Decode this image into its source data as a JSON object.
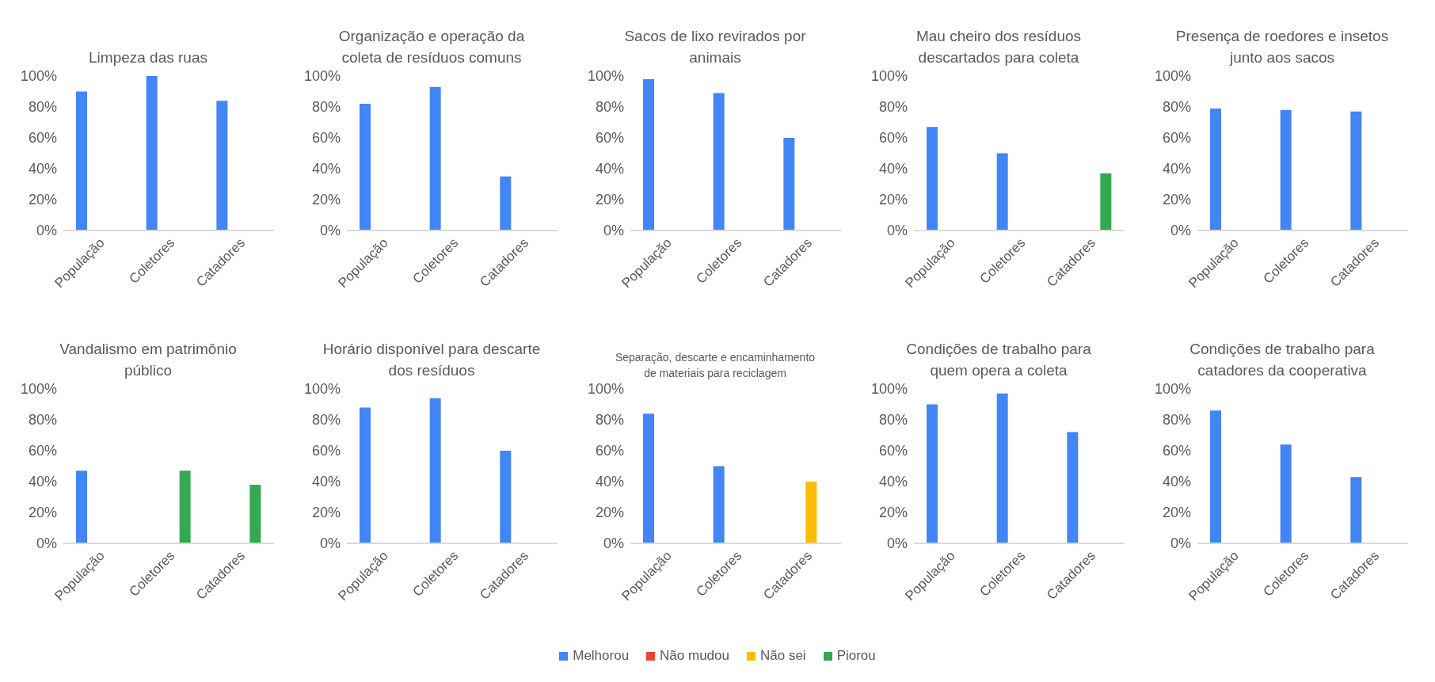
{
  "chart_data": [
    {
      "type": "bar",
      "title": "Limpeza das ruas",
      "categories": [
        "População",
        "Coletores",
        "Catadores"
      ],
      "series": [
        {
          "color": "#4285f4",
          "values": [
            90,
            100,
            84
          ]
        },
        {
          "color": "#ea4335",
          "values": [
            null,
            null,
            null
          ]
        },
        {
          "color": "#fbbc04",
          "values": [
            null,
            null,
            null
          ]
        },
        {
          "color": "#34a853",
          "values": [
            null,
            null,
            null
          ]
        }
      ],
      "ylim": [
        0,
        100
      ],
      "yticks": [
        {
          "value": 0,
          "label": "0%"
        },
        {
          "value": 20,
          "label": "20%"
        },
        {
          "value": 40,
          "label": "40%"
        },
        {
          "value": 60,
          "label": "60%"
        },
        {
          "value": 80,
          "label": "80%"
        },
        {
          "value": 100,
          "label": "100%"
        }
      ],
      "grid": false
    },
    {
      "type": "bar",
      "title": "Organização e operação da coleta de resíduos comuns",
      "categories": [
        "População",
        "Coletores",
        "Catadores"
      ],
      "series": [
        {
          "color": "#4285f4",
          "values": [
            82,
            93,
            35
          ]
        },
        {
          "color": "#ea4335",
          "values": [
            null,
            null,
            null
          ]
        },
        {
          "color": "#fbbc04",
          "values": [
            null,
            null,
            null
          ]
        },
        {
          "color": "#34a853",
          "values": [
            null,
            null,
            null
          ]
        }
      ],
      "ylim": [
        0,
        100
      ],
      "yticks": [
        {
          "value": 0,
          "label": "0%"
        },
        {
          "value": 20,
          "label": "20%"
        },
        {
          "value": 40,
          "label": "40%"
        },
        {
          "value": 60,
          "label": "60%"
        },
        {
          "value": 80,
          "label": "80%"
        },
        {
          "value": 100,
          "label": "100%"
        }
      ],
      "grid": false
    },
    {
      "type": "bar",
      "title": "Sacos de lixo revirados por animais",
      "categories": [
        "População",
        "Coletores",
        "Catadores"
      ],
      "series": [
        {
          "color": "#4285f4",
          "values": [
            98,
            89,
            60
          ]
        },
        {
          "color": "#ea4335",
          "values": [
            null,
            null,
            null
          ]
        },
        {
          "color": "#fbbc04",
          "values": [
            null,
            null,
            null
          ]
        },
        {
          "color": "#34a853",
          "values": [
            null,
            null,
            null
          ]
        }
      ],
      "ylim": [
        0,
        100
      ],
      "yticks": [
        {
          "value": 0,
          "label": "0%"
        },
        {
          "value": 20,
          "label": "20%"
        },
        {
          "value": 40,
          "label": "40%"
        },
        {
          "value": 60,
          "label": "60%"
        },
        {
          "value": 80,
          "label": "80%"
        },
        {
          "value": 100,
          "label": "100%"
        }
      ],
      "grid": false
    },
    {
      "type": "bar",
      "title": "Mau cheiro dos resíduos descartados para coleta",
      "categories": [
        "População",
        "Coletores",
        "Catadores"
      ],
      "series": [
        {
          "color": "#4285f4",
          "values": [
            67,
            50,
            null
          ]
        },
        {
          "color": "#ea4335",
          "values": [
            null,
            null,
            null
          ]
        },
        {
          "color": "#fbbc04",
          "values": [
            null,
            null,
            null
          ]
        },
        {
          "color": "#34a853",
          "values": [
            null,
            null,
            37
          ]
        }
      ],
      "ylim": [
        0,
        100
      ],
      "yticks": [
        {
          "value": 0,
          "label": "0%"
        },
        {
          "value": 20,
          "label": "20%"
        },
        {
          "value": 40,
          "label": "40%"
        },
        {
          "value": 60,
          "label": "60%"
        },
        {
          "value": 80,
          "label": "80%"
        },
        {
          "value": 100,
          "label": "100%"
        }
      ],
      "grid": false
    },
    {
      "type": "bar",
      "title": "Presença de roedores e insetos junto aos sacos",
      "categories": [
        "População",
        "Coletores",
        "Catadores"
      ],
      "series": [
        {
          "color": "#4285f4",
          "values": [
            79,
            78,
            77
          ]
        },
        {
          "color": "#ea4335",
          "values": [
            null,
            null,
            null
          ]
        },
        {
          "color": "#fbbc04",
          "values": [
            null,
            null,
            null
          ]
        },
        {
          "color": "#34a853",
          "values": [
            null,
            null,
            null
          ]
        }
      ],
      "ylim": [
        0,
        100
      ],
      "yticks": [
        {
          "value": 0,
          "label": "0%"
        },
        {
          "value": 20,
          "label": "20%"
        },
        {
          "value": 40,
          "label": "40%"
        },
        {
          "value": 60,
          "label": "60%"
        },
        {
          "value": 80,
          "label": "80%"
        },
        {
          "value": 100,
          "label": "100%"
        }
      ],
      "grid": false
    },
    {
      "type": "bar",
      "title": "Vandalismo em patrimônio público",
      "categories": [
        "População",
        "Coletores",
        "Catadores"
      ],
      "series": [
        {
          "color": "#4285f4",
          "values": [
            47,
            null,
            null
          ]
        },
        {
          "color": "#ea4335",
          "values": [
            null,
            null,
            null
          ]
        },
        {
          "color": "#fbbc04",
          "values": [
            null,
            null,
            null
          ]
        },
        {
          "color": "#34a853",
          "values": [
            null,
            47,
            38
          ]
        }
      ],
      "ylim": [
        0,
        100
      ],
      "yticks": [
        {
          "value": 0,
          "label": "0%"
        },
        {
          "value": 20,
          "label": "20%"
        },
        {
          "value": 40,
          "label": "40%"
        },
        {
          "value": 60,
          "label": "60%"
        },
        {
          "value": 80,
          "label": "80%"
        },
        {
          "value": 100,
          "label": "100%"
        }
      ],
      "grid": false
    },
    {
      "type": "bar",
      "title": "Horário disponível para descarte dos resíduos",
      "categories": [
        "População",
        "Coletores",
        "Catadores"
      ],
      "series": [
        {
          "color": "#4285f4",
          "values": [
            88,
            94,
            60
          ]
        },
        {
          "color": "#ea4335",
          "values": [
            null,
            null,
            null
          ]
        },
        {
          "color": "#fbbc04",
          "values": [
            null,
            null,
            null
          ]
        },
        {
          "color": "#34a853",
          "values": [
            null,
            null,
            null
          ]
        }
      ],
      "ylim": [
        0,
        100
      ],
      "yticks": [
        {
          "value": 0,
          "label": "0%"
        },
        {
          "value": 20,
          "label": "20%"
        },
        {
          "value": 40,
          "label": "40%"
        },
        {
          "value": 60,
          "label": "60%"
        },
        {
          "value": 80,
          "label": "80%"
        },
        {
          "value": 100,
          "label": "100%"
        }
      ],
      "grid": false
    },
    {
      "type": "bar",
      "title": "Separação, descarte e encaminhamento de materiais para reciclagem",
      "categories": [
        "População",
        "Coletores",
        "Catadores"
      ],
      "series": [
        {
          "color": "#4285f4",
          "values": [
            84,
            50,
            null
          ]
        },
        {
          "color": "#ea4335",
          "values": [
            null,
            null,
            null
          ]
        },
        {
          "color": "#fbbc04",
          "values": [
            null,
            null,
            40
          ]
        },
        {
          "color": "#34a853",
          "values": [
            null,
            null,
            null
          ]
        }
      ],
      "ylim": [
        0,
        100
      ],
      "yticks": [
        {
          "value": 0,
          "label": "0%"
        },
        {
          "value": 20,
          "label": "20%"
        },
        {
          "value": 40,
          "label": "40%"
        },
        {
          "value": 60,
          "label": "60%"
        },
        {
          "value": 80,
          "label": "80%"
        },
        {
          "value": 100,
          "label": "100%"
        }
      ],
      "grid": false
    },
    {
      "type": "bar",
      "title": "Condições de trabalho para quem opera a coleta",
      "categories": [
        "População",
        "Coletores",
        "Catadores"
      ],
      "series": [
        {
          "color": "#4285f4",
          "values": [
            90,
            97,
            72
          ]
        },
        {
          "color": "#ea4335",
          "values": [
            null,
            null,
            null
          ]
        },
        {
          "color": "#fbbc04",
          "values": [
            null,
            null,
            null
          ]
        },
        {
          "color": "#34a853",
          "values": [
            null,
            null,
            null
          ]
        }
      ],
      "ylim": [
        0,
        100
      ],
      "yticks": [
        {
          "value": 0,
          "label": "0%"
        },
        {
          "value": 20,
          "label": "20%"
        },
        {
          "value": 40,
          "label": "40%"
        },
        {
          "value": 60,
          "label": "60%"
        },
        {
          "value": 80,
          "label": "80%"
        },
        {
          "value": 100,
          "label": "100%"
        }
      ],
      "grid": false
    },
    {
      "type": "bar",
      "title": "Condições de trabalho para catadores da cooperativa",
      "categories": [
        "População",
        "Coletores",
        "Catadores"
      ],
      "series": [
        {
          "name": "Melhorou",
          "color": "#4285f4",
          "values": [
            86,
            64,
            43
          ]
        },
        {
          "name": "Não mudou",
          "color": "#ea4335",
          "values": [
            null,
            null,
            null
          ]
        },
        {
          "name": "Não sei",
          "color": "#fbbc04",
          "values": [
            null,
            null,
            null
          ]
        },
        {
          "name": "Piorou",
          "color": "#34a853",
          "values": [
            null,
            null,
            null
          ]
        }
      ],
      "ylim": [
        0,
        100
      ],
      "yticks": [
        {
          "value": 0,
          "label": "0%"
        },
        {
          "value": 20,
          "label": "20%"
        },
        {
          "value": 40,
          "label": "40%"
        },
        {
          "value": 60,
          "label": "60%"
        },
        {
          "value": 80,
          "label": "80%"
        },
        {
          "value": 100,
          "label": "100%"
        }
      ],
      "grid": false,
      "legend": "bottom"
    }
  ]
}
